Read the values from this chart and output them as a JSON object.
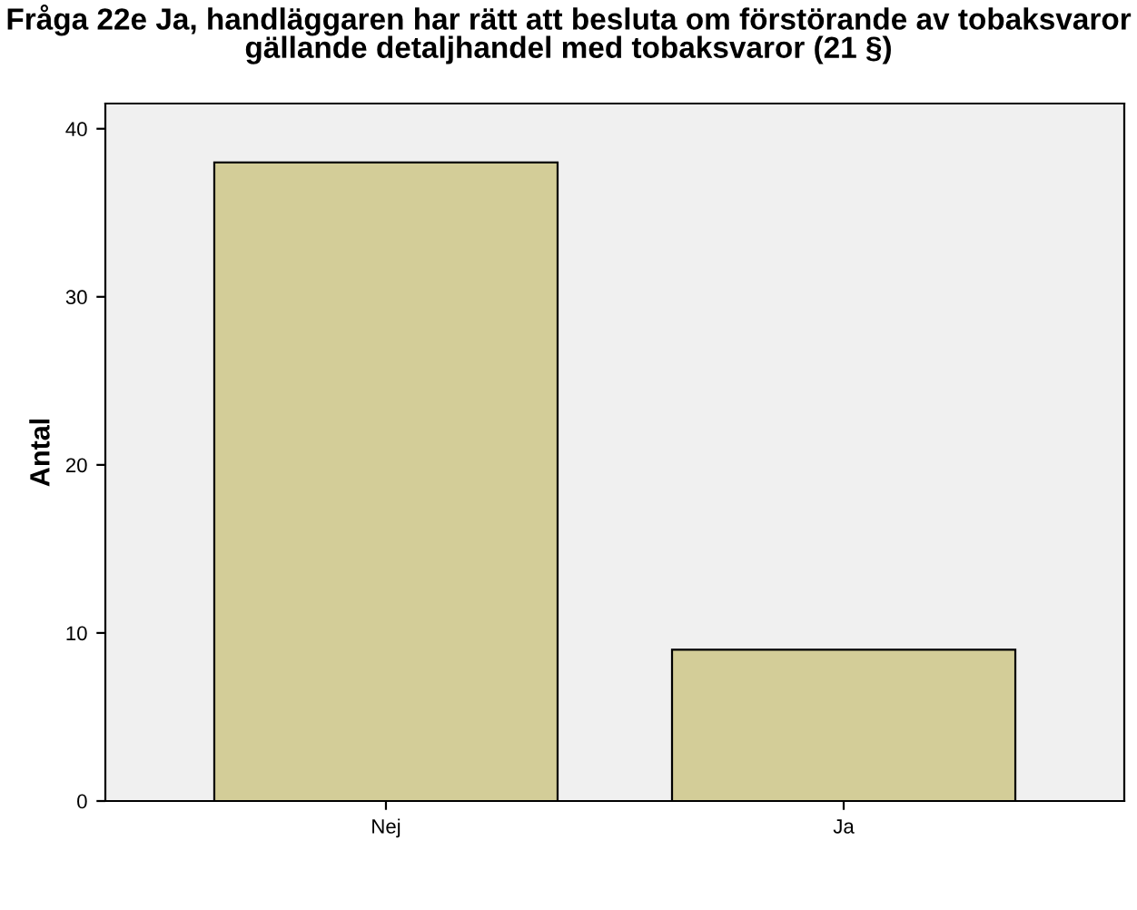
{
  "chart_data": {
    "type": "bar",
    "title": "Fråga 22e Ja, handläggaren har rätt att besluta om förstörande av tobaksvaror\ngällande detaljhandel med tobaksvaror (21 §)",
    "ylabel": "Antal",
    "categories": [
      "Nej",
      "Ja"
    ],
    "values": [
      38,
      9
    ],
    "color": "#d3cd98",
    "ylim": [
      0,
      41.5
    ],
    "yticks": [
      0,
      10,
      20,
      30,
      40
    ],
    "grid": false,
    "legend": false
  }
}
